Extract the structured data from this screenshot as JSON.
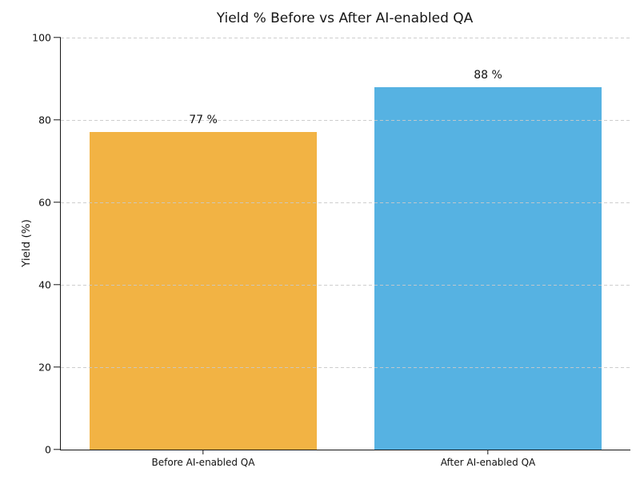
{
  "figure": {
    "title": "Yield % Before vs After AI-enabled QA",
    "ylabel": "Yield (%)"
  },
  "chart_data": {
    "type": "bar",
    "title": "Yield % Before vs After AI-enabled QA",
    "categories": [
      "Before AI-enabled QA",
      "After AI-enabled QA"
    ],
    "values": [
      77,
      88
    ],
    "value_labels": [
      "77 %",
      "88 %"
    ],
    "bar_colors": [
      "#F2B344",
      "#56B2E2"
    ],
    "xlabel": "",
    "ylabel": "Yield (%)",
    "ylim": [
      0,
      100
    ],
    "yticks": [
      0,
      20,
      40,
      60,
      80,
      100
    ],
    "bar_width_fraction": 0.8,
    "grid": {
      "axis": "y",
      "style": "dashed",
      "color": "#c9c9c9",
      "above_bars": true
    },
    "legend": "none",
    "background": "#ffffff"
  },
  "colors": {
    "background": "#ffffff",
    "text": "#161616",
    "axis": "#161616",
    "grid": "#c9c9c9",
    "bar_before": "#F2B344",
    "bar_after": "#56B2E2"
  }
}
